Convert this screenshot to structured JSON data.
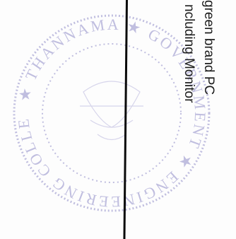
{
  "document": {
    "lines": [
      "green brand PC",
      "ncluding Monitor",
      "",
      ""
    ]
  },
  "stamp": {
    "color": "#8f8cc8",
    "text_top": "GOVERNMENT",
    "text_left": "THANNAMA",
    "text_bottom": "ENGINEERING COLLEGE"
  }
}
